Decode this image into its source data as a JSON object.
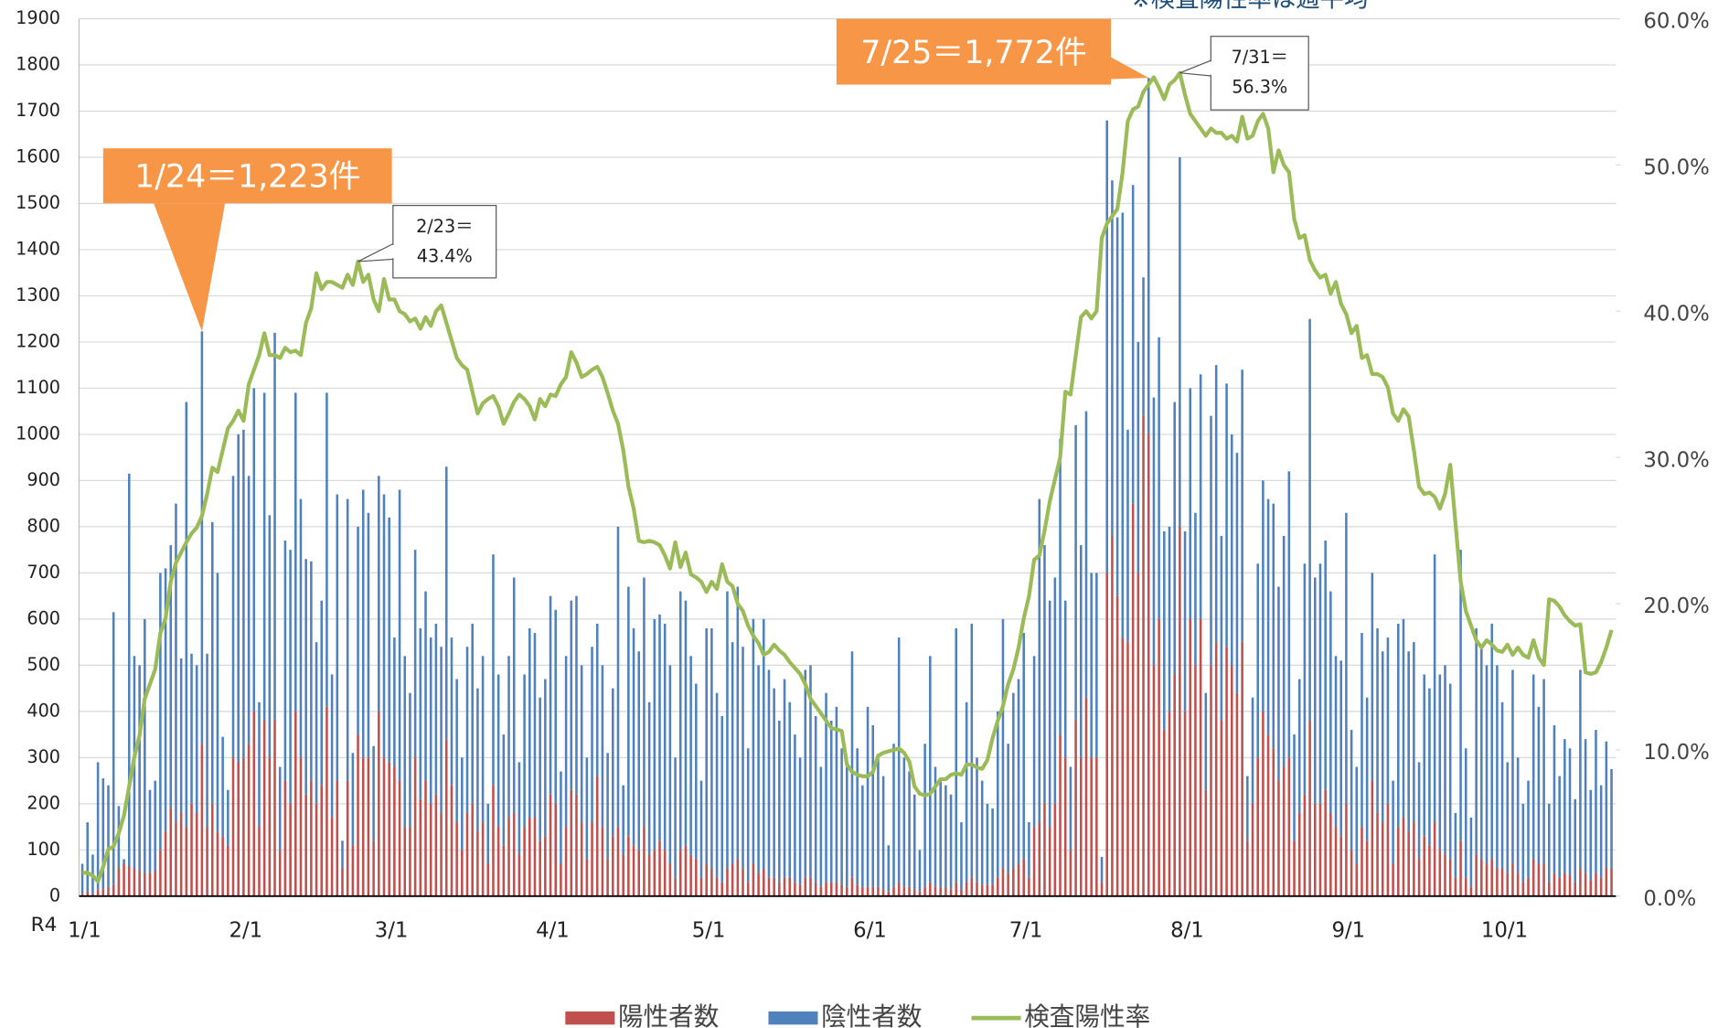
{
  "chart_data": {
    "type": "bar",
    "stacked": true,
    "note": "※検査陽性率は週平均",
    "x_prefix": "R4",
    "categories": [
      "1/1",
      null,
      null,
      null,
      null,
      null,
      null,
      null,
      null,
      null,
      null,
      null,
      null,
      null,
      null,
      null,
      null,
      null,
      null,
      null,
      null,
      null,
      null,
      null,
      null,
      null,
      null,
      null,
      null,
      null,
      null,
      "2/1",
      null,
      null,
      null,
      null,
      null,
      null,
      null,
      null,
      null,
      null,
      null,
      null,
      null,
      null,
      null,
      null,
      null,
      null,
      null,
      null,
      null,
      null,
      null,
      null,
      null,
      null,
      null,
      "3/1",
      null,
      null,
      null,
      null,
      null,
      null,
      null,
      null,
      null,
      null,
      null,
      null,
      null,
      null,
      null,
      null,
      null,
      null,
      null,
      null,
      null,
      null,
      null,
      null,
      null,
      null,
      null,
      null,
      null,
      null,
      "4/1",
      null,
      null,
      null,
      null,
      null,
      null,
      null,
      null,
      null,
      null,
      null,
      null,
      null,
      null,
      null,
      null,
      null,
      null,
      null,
      null,
      null,
      null,
      null,
      null,
      null,
      null,
      null,
      null,
      null,
      "5/1",
      null,
      null,
      null,
      null,
      null,
      null,
      null,
      null,
      null,
      null,
      null,
      null,
      null,
      null,
      null,
      null,
      null,
      null,
      null,
      null,
      null,
      null,
      null,
      null,
      null,
      null,
      null,
      null,
      null,
      null,
      "6/1",
      null,
      null,
      null,
      null,
      null,
      null,
      null,
      null,
      null,
      null,
      null,
      null,
      null,
      null,
      null,
      null,
      null,
      null,
      null,
      null,
      null,
      null,
      null,
      null,
      null,
      null,
      null,
      null,
      null,
      "7/1",
      null,
      null,
      null,
      null,
      null,
      null,
      null,
      null,
      null,
      null,
      null,
      null,
      null,
      null,
      null,
      null,
      null,
      null,
      null,
      null,
      null,
      null,
      null,
      null,
      null,
      null,
      null,
      null,
      null,
      null,
      "8/1",
      null,
      null,
      null,
      null,
      null,
      null,
      null,
      null,
      null,
      null,
      null,
      null,
      null,
      null,
      null,
      null,
      null,
      null,
      null,
      null,
      null,
      null,
      null,
      null,
      null,
      null,
      null,
      null,
      null,
      null,
      "9/1",
      null,
      null,
      null,
      null,
      null,
      null,
      null,
      null,
      null,
      null,
      null,
      null,
      null,
      null,
      null,
      null,
      null,
      null,
      null,
      null,
      null,
      null,
      null,
      null,
      null,
      null,
      null,
      null,
      null,
      "10/1",
      null,
      null,
      null,
      null,
      null,
      null,
      null,
      null,
      null,
      null,
      null,
      null,
      null,
      null,
      null,
      null,
      null,
      null,
      null,
      null,
      null
    ],
    "series": [
      {
        "name": "陽性者数",
        "type": "bar",
        "color": "#c0504d",
        "values": [
          5,
          10,
          5,
          15,
          15,
          20,
          25,
          60,
          70,
          65,
          60,
          55,
          50,
          50,
          55,
          100,
          140,
          190,
          160,
          180,
          150,
          200,
          180,
          330,
          150,
          200,
          140,
          130,
          110,
          300,
          290,
          300,
          330,
          400,
          150,
          380,
          300,
          380,
          100,
          250,
          200,
          400,
          300,
          220,
          250,
          200,
          240,
          410,
          170,
          250,
          60,
          250,
          110,
          350,
          300,
          300,
          120,
          400,
          300,
          290,
          280,
          250,
          150,
          150,
          300,
          210,
          250,
          200,
          220,
          180,
          340,
          240,
          160,
          100,
          180,
          200,
          140,
          160,
          70,
          240,
          150,
          110,
          170,
          180,
          90,
          150,
          170,
          170,
          120,
          130,
          220,
          200,
          70,
          150,
          230,
          220,
          160,
          80,
          160,
          260,
          150,
          80,
          130,
          150,
          90,
          130,
          110,
          100,
          150,
          90,
          100,
          120,
          100,
          70,
          40,
          100,
          110,
          90,
          80,
          40,
          70,
          60,
          40,
          30,
          60,
          70,
          80,
          60,
          30,
          70,
          50,
          60,
          40,
          40,
          30,
          40,
          40,
          30,
          25,
          40,
          40,
          30,
          20,
          30,
          30,
          30,
          25,
          20,
          40,
          25,
          20,
          20,
          20,
          20,
          15,
          10,
          20,
          30,
          20,
          20,
          15,
          10,
          20,
          30,
          20,
          20,
          20,
          15,
          30,
          15,
          30,
          40,
          30,
          25,
          25,
          25,
          40,
          60,
          50,
          60,
          70,
          80,
          40,
          150,
          160,
          200,
          150,
          200,
          350,
          300,
          100,
          380,
          300,
          430,
          300,
          300,
          30,
          700,
          780,
          650,
          560,
          550,
          850,
          700,
          1040,
          1000,
          500,
          600,
          360,
          400,
          480,
          800,
          400,
          600,
          500,
          600,
          230,
          500,
          550,
          380,
          540,
          500,
          440,
          550,
          120,
          200,
          300,
          400,
          350,
          320,
          250,
          280,
          300,
          120,
          180,
          220,
          380,
          200,
          200,
          230,
          180,
          150,
          130,
          200,
          100,
          70,
          150,
          120,
          250,
          180,
          160,
          200,
          70,
          150,
          170,
          140,
          160,
          80,
          130,
          110,
          160,
          100,
          90,
          80,
          40,
          120,
          40,
          20,
          90,
          80,
          70,
          80,
          60,
          60,
          50,
          70,
          50,
          30,
          40,
          80,
          70,
          70,
          30,
          50,
          40,
          50,
          45,
          30,
          60,
          50,
          35,
          50,
          40,
          60,
          60
        ]
      },
      {
        "name": "陰性者数",
        "type": "bar",
        "color": "#4f81bd",
        "values": [
          65,
          150,
          85,
          275,
          240,
          220,
          590,
          135,
          10,
          850,
          460,
          445,
          550,
          180,
          195,
          600,
          570,
          570,
          690,
          335,
          920,
          325,
          320,
          893,
          375,
          610,
          560,
          215,
          120,
          610,
          710,
          710,
          580,
          700,
          270,
          710,
          525,
          840,
          180,
          520,
          550,
          690,
          560,
          510,
          475,
          350,
          400,
          680,
          310,
          620,
          60,
          610,
          200,
          450,
          580,
          530,
          205,
          510,
          570,
          530,
          280,
          630,
          370,
          290,
          450,
          370,
          410,
          360,
          370,
          360,
          590,
          320,
          310,
          200,
          360,
          390,
          310,
          360,
          130,
          500,
          330,
          240,
          350,
          510,
          200,
          330,
          410,
          400,
          310,
          340,
          430,
          420,
          200,
          370,
          410,
          430,
          340,
          220,
          380,
          330,
          350,
          230,
          320,
          650,
          150,
          540,
          470,
          430,
          540,
          330,
          500,
          490,
          490,
          430,
          260,
          560,
          530,
          430,
          380,
          210,
          510,
          520,
          400,
          360,
          600,
          480,
          590,
          480,
          290,
          530,
          450,
          540,
          450,
          410,
          350,
          430,
          380,
          320,
          275,
          450,
          460,
          360,
          260,
          410,
          350,
          380,
          295,
          260,
          490,
          295,
          220,
          390,
          350,
          280,
          245,
          100,
          310,
          530,
          280,
          250,
          205,
          90,
          310,
          490,
          260,
          230,
          220,
          205,
          550,
          145,
          390,
          550,
          270,
          225,
          175,
          165,
          360,
          540,
          280,
          380,
          400,
          490,
          120,
          370,
          700,
          560,
          490,
          490,
          640,
          340,
          180,
          640,
          460,
          620,
          400,
          400,
          55,
          980,
          770,
          820,
          920,
          460,
          690,
          500,
          300,
          772,
          580,
          610,
          430,
          400,
          590,
          800,
          390,
          500,
          330,
          530,
          210,
          540,
          600,
          400,
          570,
          500,
          520,
          590,
          140,
          230,
          420,
          500,
          510,
          530,
          420,
          500,
          620,
          230,
          290,
          500,
          870,
          490,
          520,
          540,
          480,
          370,
          380,
          630,
          260,
          210,
          420,
          310,
          450,
          400,
          370,
          360,
          180,
          440,
          430,
          390,
          390,
          210,
          350,
          340,
          580,
          380,
          410,
          380,
          140,
          630,
          280,
          150,
          490,
          460,
          430,
          510,
          440,
          360,
          240,
          420,
          250,
          170,
          210,
          400,
          340,
          400,
          170,
          320,
          220,
          290,
          275,
          180,
          430,
          290,
          195,
          310,
          200,
          275,
          215
        ]
      },
      {
        "name": "検査陽性率",
        "type": "line",
        "axis": "y2",
        "color": "#9bbb59",
        "values": [
          1.6,
          1.6,
          1.4,
          1.0,
          2.0,
          3.2,
          3.4,
          4.3,
          5.5,
          7.5,
          9.5,
          11,
          13.5,
          14.5,
          15.5,
          18,
          19,
          21.5,
          22.8,
          23.5,
          24.2,
          24.8,
          25.2,
          26,
          27.5,
          29.3,
          29,
          30.5,
          32,
          32.5,
          33.2,
          32.5,
          35,
          36,
          37,
          38.5,
          37,
          37,
          36.8,
          37.5,
          37.2,
          37.3,
          37,
          39.2,
          40.2,
          42.6,
          41.5,
          42,
          42,
          41.8,
          41.6,
          42.5,
          41.8,
          43.4,
          42,
          42.5,
          40.8,
          40,
          42.2,
          40.8,
          40.8,
          40,
          39.8,
          39.3,
          39.5,
          38.8,
          39.6,
          39,
          40,
          40.4,
          39.2,
          38,
          36.8,
          36.3,
          36,
          34.5,
          33,
          33.7,
          34,
          34.2,
          33.5,
          32.3,
          33,
          33.8,
          34.3,
          34,
          33.5,
          32.6,
          34,
          33.5,
          34.3,
          34.2,
          35,
          35.5,
          37.2,
          36.5,
          35.5,
          35.7,
          36,
          36.2,
          35.5,
          34.4,
          33.2,
          32.3,
          30.5,
          28,
          26.5,
          24.3,
          24.2,
          24.3,
          24.2,
          24,
          23.3,
          22.4,
          24.2,
          22.5,
          23.5,
          22,
          21.8,
          21.5,
          20.8,
          21.5,
          21,
          22.7,
          21.5,
          21.2,
          20,
          19.5,
          18.5,
          17.8,
          17.3,
          16.5,
          16.7,
          17.2,
          16.8,
          16.5,
          16,
          15.6,
          15.2,
          14.5,
          13.5,
          13,
          12.5,
          12,
          11.5,
          11.4,
          11.3,
          9,
          8.5,
          8.3,
          8.2,
          8.2,
          8.5,
          9.6,
          9.8,
          9.9,
          10,
          10.1,
          9.8,
          9.2,
          7.5,
          7,
          6.9,
          7,
          7.5,
          8,
          8,
          8.3,
          8.4,
          8.3,
          9,
          9,
          8.8,
          8.7,
          9.3,
          10.8,
          12,
          13,
          14.5,
          15.5,
          17,
          19,
          20.5,
          23,
          23.3,
          25,
          27,
          28.5,
          30,
          34.5,
          34.3,
          37,
          39.6,
          40,
          39.5,
          40,
          45,
          46,
          46.5,
          47,
          49.5,
          53,
          53.8,
          54,
          55,
          55.5,
          56,
          55.3,
          54.5,
          55.5,
          55.8,
          56.3,
          54.8,
          53.5,
          53,
          52.5,
          52,
          52.5,
          52.2,
          52.2,
          51.8,
          52,
          51.6,
          53.3,
          51.8,
          52,
          53,
          53.5,
          52.5,
          49.5,
          51,
          50,
          49.5,
          46.3,
          45,
          45.2,
          43.5,
          42.8,
          42.3,
          42.5,
          41.2,
          42,
          40.5,
          39.8,
          38.5,
          39,
          36.8,
          37,
          35.7,
          35.7,
          35.5,
          34.8,
          33,
          32.5,
          33.3,
          32.8,
          30.5,
          28,
          27.5,
          27.6,
          27.3,
          26.5,
          27.5,
          29.5,
          25.5,
          21.5,
          19.5,
          18.5,
          17.5,
          17,
          17.5,
          17.2,
          16.8,
          16.7,
          17.2,
          16.5,
          17,
          16.5,
          16.3,
          17.5,
          16.3,
          15.8,
          20.3,
          20.2,
          19.8,
          19.2,
          18.8,
          18.5,
          18.6,
          15.3,
          15.2,
          15.3,
          16,
          17,
          18.2
        ]
      }
    ],
    "ylim": [
      0,
      1900
    ],
    "yticks": [
      0,
      100,
      200,
      300,
      400,
      500,
      600,
      700,
      800,
      900,
      1000,
      1100,
      1200,
      1300,
      1400,
      1500,
      1600,
      1700,
      1800,
      1900
    ],
    "y2lim": [
      0,
      60
    ],
    "y2ticks": [
      {
        "value": 0,
        "label": "0.0%"
      },
      {
        "value": 10,
        "label": "10.0%"
      },
      {
        "value": 20,
        "label": "20.0%"
      },
      {
        "value": 30,
        "label": "30.0%"
      },
      {
        "value": 40,
        "label": "40.0%"
      },
      {
        "value": 50,
        "label": "50.0%"
      },
      {
        "value": 60,
        "label": "60.0%"
      }
    ],
    "grid": true,
    "legend": "bottom",
    "annotations": [
      {
        "lines": [
          "1/24＝1,223件"
        ]
      },
      {
        "lines": [
          "7/25＝1,772件"
        ]
      },
      {
        "lines": [
          "2/23＝",
          "43.4%"
        ]
      },
      {
        "lines": [
          "7/31＝",
          "56.3%"
        ]
      }
    ]
  }
}
